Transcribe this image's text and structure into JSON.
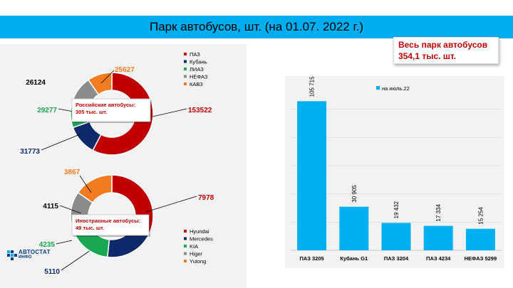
{
  "title": "Парк автобусов, шт. (на 01.07. 2022 г.)",
  "total": {
    "line1": "Весь парк автобусов",
    "line2": "354,1 тыс. шт."
  },
  "logo": {
    "main": "АВТОСТАТ",
    "sub": "ИНФО"
  },
  "colors": {
    "title_bar": "#00aeef",
    "bar": "#00b0f0",
    "label_red": "#c00000"
  },
  "chart_data": [
    {
      "type": "pie",
      "variant": "doughnut",
      "callout": "Российские автобусы:\n305 тыс. шт.",
      "legend_position": "right",
      "slices": [
        {
          "label": "ПАЗ",
          "value": 153522,
          "value_label": "153522",
          "color": "#c00000"
        },
        {
          "label": "Кубань",
          "value": 31773,
          "value_label": "31773",
          "color": "#0e2a6b"
        },
        {
          "label": "ЛИАЗ",
          "value": 29277,
          "value_label": "29277",
          "color": "#17a851"
        },
        {
          "label": "НЕФАЗ",
          "value": 26124,
          "value_label": "26124",
          "color": "#8c8c8c"
        },
        {
          "label": "КАВЗ",
          "value": 25627,
          "value_label": "25627",
          "color": "#f47c20"
        }
      ]
    },
    {
      "type": "pie",
      "variant": "doughnut",
      "callout": "Иностранные автобусы:\n49 тыс. шт.",
      "legend_position": "right",
      "slices": [
        {
          "label": "Hyundai",
          "value": 7978,
          "value_label": "7978",
          "color": "#c00000"
        },
        {
          "label": "Mercedes",
          "value": 5110,
          "value_label": "5110",
          "color": "#0e2a6b"
        },
        {
          "label": "KIA",
          "value": 4235,
          "value_label": "4235",
          "color": "#17a851"
        },
        {
          "label": "Higer",
          "value": 4115,
          "value_label": "4115",
          "color": "#8c8c8c"
        },
        {
          "label": "Yutong",
          "value": 3867,
          "value_label": "3867",
          "color": "#f47c20"
        }
      ]
    },
    {
      "type": "bar",
      "legend": "на июль.22",
      "legend_position": "top",
      "categories": [
        "ПАЗ 3205",
        "Кубань G1",
        "ПАЗ 3204",
        "ПАЗ 4234",
        "НЕФАЗ 5299"
      ],
      "values": [
        105715,
        30905,
        19432,
        17334,
        15254
      ],
      "value_labels": [
        "105 715",
        "30 905",
        "19 432",
        "17 334",
        "15 254"
      ],
      "ylim": [
        0,
        120000
      ],
      "grid": true
    }
  ]
}
